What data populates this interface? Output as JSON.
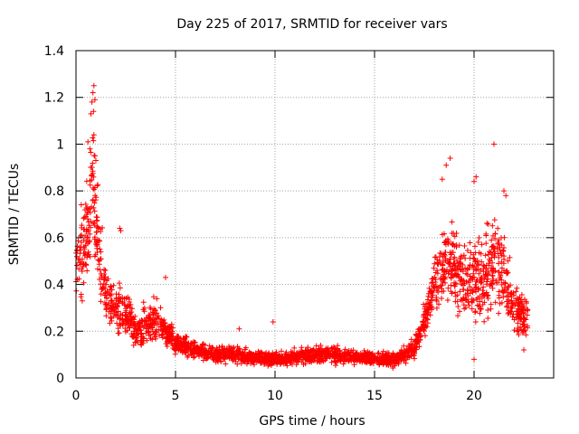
{
  "chart_data": {
    "type": "scatter",
    "title": "Day 225 of 2017, SRMTID for receiver vars",
    "xlabel": "GPS time / hours",
    "ylabel": "SRMTID / TECUs",
    "xlim": [
      0,
      24
    ],
    "ylim": [
      0,
      1.4
    ],
    "xticks": [
      0,
      5,
      10,
      15,
      20
    ],
    "xtick_labels": [
      "0",
      "5",
      "10",
      "15",
      "20"
    ],
    "yticks": [
      0,
      0.2,
      0.4,
      0.6,
      0.8,
      1,
      1.2,
      1.4
    ],
    "ytick_labels": [
      "0",
      "0.2",
      "0.4",
      "0.6",
      "0.8",
      "1",
      "1.2",
      "1.4"
    ],
    "grid": true,
    "marker": "+",
    "color": "#ff0000",
    "data_range_hours": [
      0,
      22.7
    ],
    "envelope": [
      {
        "x": 0.0,
        "y": 0.45,
        "spread": 0.18
      },
      {
        "x": 0.5,
        "y": 0.6,
        "spread": 0.3
      },
      {
        "x": 0.8,
        "y": 0.85,
        "spread": 0.4
      },
      {
        "x": 1.0,
        "y": 0.65,
        "spread": 0.3
      },
      {
        "x": 1.5,
        "y": 0.35,
        "spread": 0.15
      },
      {
        "x": 2.0,
        "y": 0.28,
        "spread": 0.12
      },
      {
        "x": 2.3,
        "y": 0.3,
        "spread": 0.15
      },
      {
        "x": 3.0,
        "y": 0.2,
        "spread": 0.1
      },
      {
        "x": 4.0,
        "y": 0.25,
        "spread": 0.12
      },
      {
        "x": 5.0,
        "y": 0.15,
        "spread": 0.07
      },
      {
        "x": 6.0,
        "y": 0.12,
        "spread": 0.05
      },
      {
        "x": 7.0,
        "y": 0.1,
        "spread": 0.05
      },
      {
        "x": 8.0,
        "y": 0.1,
        "spread": 0.05
      },
      {
        "x": 9.0,
        "y": 0.09,
        "spread": 0.04
      },
      {
        "x": 10.0,
        "y": 0.08,
        "spread": 0.04
      },
      {
        "x": 11.0,
        "y": 0.09,
        "spread": 0.04
      },
      {
        "x": 12.0,
        "y": 0.1,
        "spread": 0.05
      },
      {
        "x": 13.0,
        "y": 0.1,
        "spread": 0.05
      },
      {
        "x": 14.0,
        "y": 0.09,
        "spread": 0.04
      },
      {
        "x": 15.0,
        "y": 0.08,
        "spread": 0.04
      },
      {
        "x": 16.0,
        "y": 0.08,
        "spread": 0.04
      },
      {
        "x": 17.0,
        "y": 0.12,
        "spread": 0.06
      },
      {
        "x": 17.5,
        "y": 0.25,
        "spread": 0.1
      },
      {
        "x": 18.0,
        "y": 0.4,
        "spread": 0.15
      },
      {
        "x": 18.7,
        "y": 0.5,
        "spread": 0.25
      },
      {
        "x": 19.5,
        "y": 0.4,
        "spread": 0.2
      },
      {
        "x": 20.0,
        "y": 0.45,
        "spread": 0.25
      },
      {
        "x": 20.5,
        "y": 0.4,
        "spread": 0.25
      },
      {
        "x": 21.0,
        "y": 0.5,
        "spread": 0.3
      },
      {
        "x": 21.5,
        "y": 0.45,
        "spread": 0.25
      },
      {
        "x": 22.0,
        "y": 0.3,
        "spread": 0.15
      },
      {
        "x": 22.7,
        "y": 0.25,
        "spread": 0.12
      }
    ],
    "outliers": [
      {
        "x": 0.75,
        "y": 1.13
      },
      {
        "x": 0.8,
        "y": 1.18
      },
      {
        "x": 0.85,
        "y": 1.22
      },
      {
        "x": 0.9,
        "y": 1.25
      },
      {
        "x": 0.95,
        "y": 1.19
      },
      {
        "x": 0.88,
        "y": 1.14
      },
      {
        "x": 0.6,
        "y": 1.01
      },
      {
        "x": 0.7,
        "y": 0.98
      },
      {
        "x": 0.9,
        "y": 1.04
      },
      {
        "x": 0.95,
        "y": 0.95
      },
      {
        "x": 1.0,
        "y": 0.93
      },
      {
        "x": 2.2,
        "y": 0.64
      },
      {
        "x": 2.25,
        "y": 0.63
      },
      {
        "x": 4.5,
        "y": 0.43
      },
      {
        "x": 9.9,
        "y": 0.24
      },
      {
        "x": 8.2,
        "y": 0.21
      },
      {
        "x": 18.8,
        "y": 0.94
      },
      {
        "x": 18.6,
        "y": 0.91
      },
      {
        "x": 18.4,
        "y": 0.85
      },
      {
        "x": 20.1,
        "y": 0.86
      },
      {
        "x": 20.0,
        "y": 0.84
      },
      {
        "x": 21.0,
        "y": 1.0
      },
      {
        "x": 21.5,
        "y": 0.8
      },
      {
        "x": 21.6,
        "y": 0.78
      },
      {
        "x": 20.0,
        "y": 0.08
      },
      {
        "x": 22.5,
        "y": 0.12
      }
    ]
  }
}
